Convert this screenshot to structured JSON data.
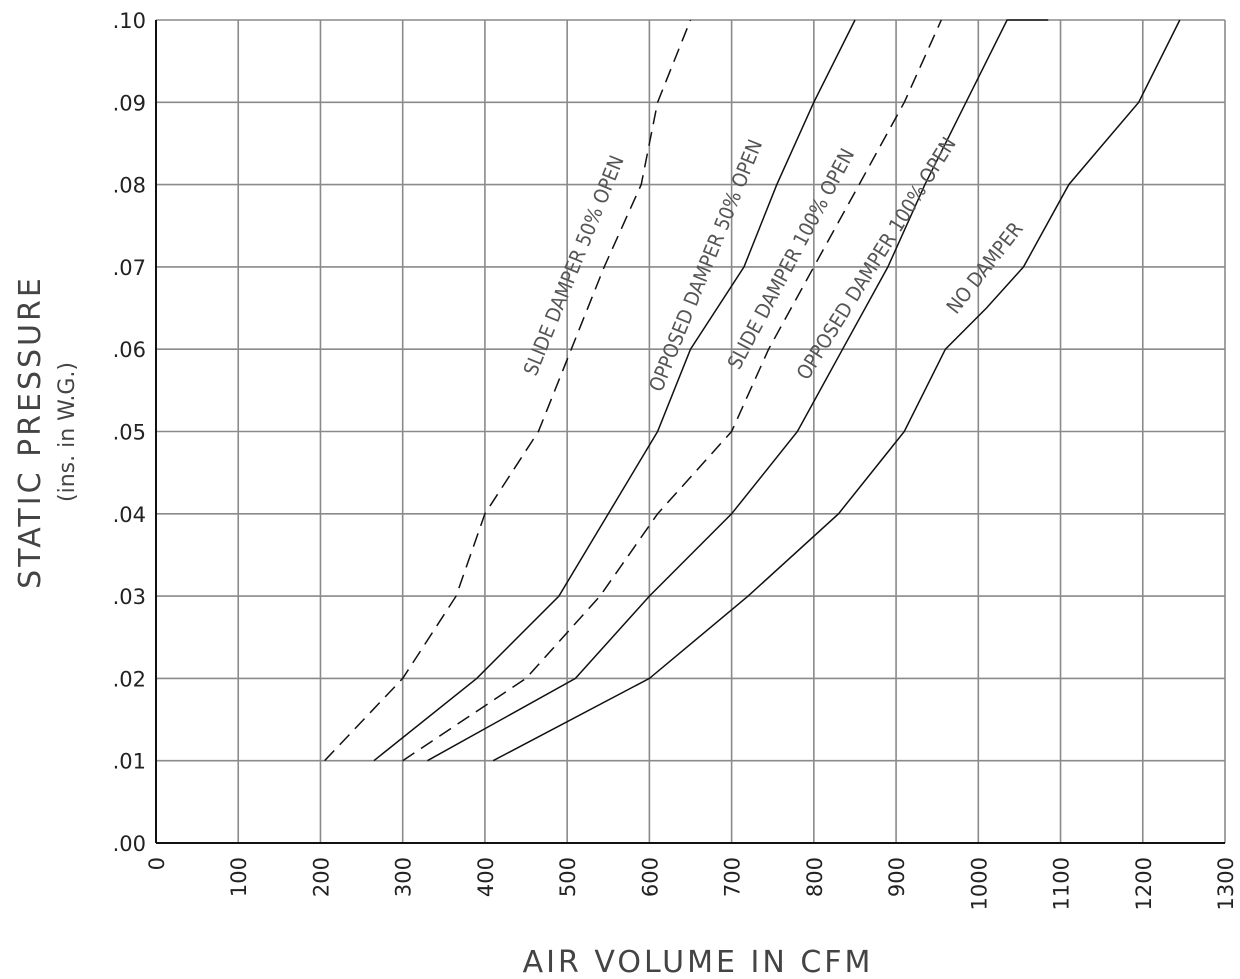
{
  "chart_data": {
    "type": "line",
    "xlabel": "AIR VOLUME IN CFM",
    "ylabel": "STATIC PRESSURE",
    "ylabel_units": "(ins. in W.G.)",
    "xlim": [
      0,
      1300
    ],
    "ylim": [
      0,
      0.1
    ],
    "x_ticks": [
      "0",
      "100",
      "200",
      "300",
      "400",
      "500",
      "600",
      "700",
      "800",
      "900",
      "1000",
      "1100",
      "1200",
      "1300"
    ],
    "y_ticks": [
      ".00",
      ".01",
      ".02",
      ".03",
      ".04",
      ".05",
      ".06",
      ".07",
      ".08",
      ".09",
      ".10"
    ],
    "grid": true,
    "series": [
      {
        "name": "SLIDE DAMPER 50% OPEN",
        "style": "dashed",
        "points": [
          [
            205,
            0.01
          ],
          [
            300,
            0.02
          ],
          [
            365,
            0.03
          ],
          [
            400,
            0.04
          ],
          [
            465,
            0.05
          ],
          [
            505,
            0.06
          ],
          [
            545,
            0.07
          ],
          [
            590,
            0.08
          ],
          [
            610,
            0.09
          ],
          [
            650,
            0.1
          ]
        ]
      },
      {
        "name": "OPPOSED DAMPER 50% OPEN",
        "style": "solid",
        "points": [
          [
            265,
            0.01
          ],
          [
            390,
            0.02
          ],
          [
            490,
            0.03
          ],
          [
            550,
            0.04
          ],
          [
            610,
            0.05
          ],
          [
            650,
            0.06
          ],
          [
            715,
            0.07
          ],
          [
            755,
            0.08
          ],
          [
            800,
            0.09
          ],
          [
            850,
            0.1
          ]
        ]
      },
      {
        "name": "SLIDE DAMPER 100% OPEN",
        "style": "dashed",
        "points": [
          [
            300,
            0.01
          ],
          [
            450,
            0.02
          ],
          [
            540,
            0.03
          ],
          [
            610,
            0.04
          ],
          [
            700,
            0.05
          ],
          [
            745,
            0.06
          ],
          [
            800,
            0.07
          ],
          [
            855,
            0.08
          ],
          [
            910,
            0.09
          ],
          [
            955,
            0.1
          ]
        ]
      },
      {
        "name": "OPPOSED DAMPER 100% OPEN",
        "style": "solid",
        "points": [
          [
            330,
            0.01
          ],
          [
            510,
            0.02
          ],
          [
            600,
            0.03
          ],
          [
            700,
            0.04
          ],
          [
            780,
            0.05
          ],
          [
            835,
            0.06
          ],
          [
            890,
            0.07
          ],
          [
            935,
            0.08
          ],
          [
            985,
            0.09
          ],
          [
            1035,
            0.1
          ],
          [
            1085,
            0.1
          ]
        ]
      },
      {
        "name": "NO DAMPER",
        "style": "solid",
        "points": [
          [
            410,
            0.01
          ],
          [
            600,
            0.02
          ],
          [
            720,
            0.03
          ],
          [
            830,
            0.04
          ],
          [
            910,
            0.05
          ],
          [
            960,
            0.06
          ],
          [
            1010,
            0.065
          ],
          [
            1055,
            0.07
          ],
          [
            1110,
            0.08
          ],
          [
            1195,
            0.09
          ],
          [
            1245,
            0.1
          ]
        ]
      }
    ]
  }
}
